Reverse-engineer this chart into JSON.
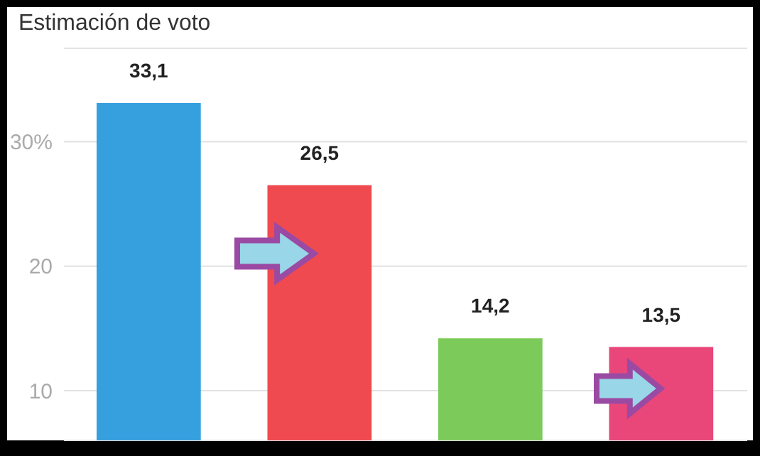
{
  "chart_data": {
    "type": "bar",
    "title": "Estimación de voto",
    "categories": [
      null,
      null,
      null,
      null
    ],
    "ylim": [
      6,
      37.5
    ],
    "yticks": [
      10,
      20,
      {
        "value": 30,
        "label": "30%"
      }
    ],
    "tick_labels": "y",
    "grid": "y",
    "series": [
      {
        "colors": [
          "#36a0de",
          "#ef4a4f",
          "#7ccb5a",
          "#e9467a"
        ],
        "values": [
          33.1,
          26.5,
          14.2,
          13.5
        ],
        "value_labels": [
          "33,1",
          "26,5",
          "14,2",
          "13,5"
        ]
      }
    ]
  }
}
